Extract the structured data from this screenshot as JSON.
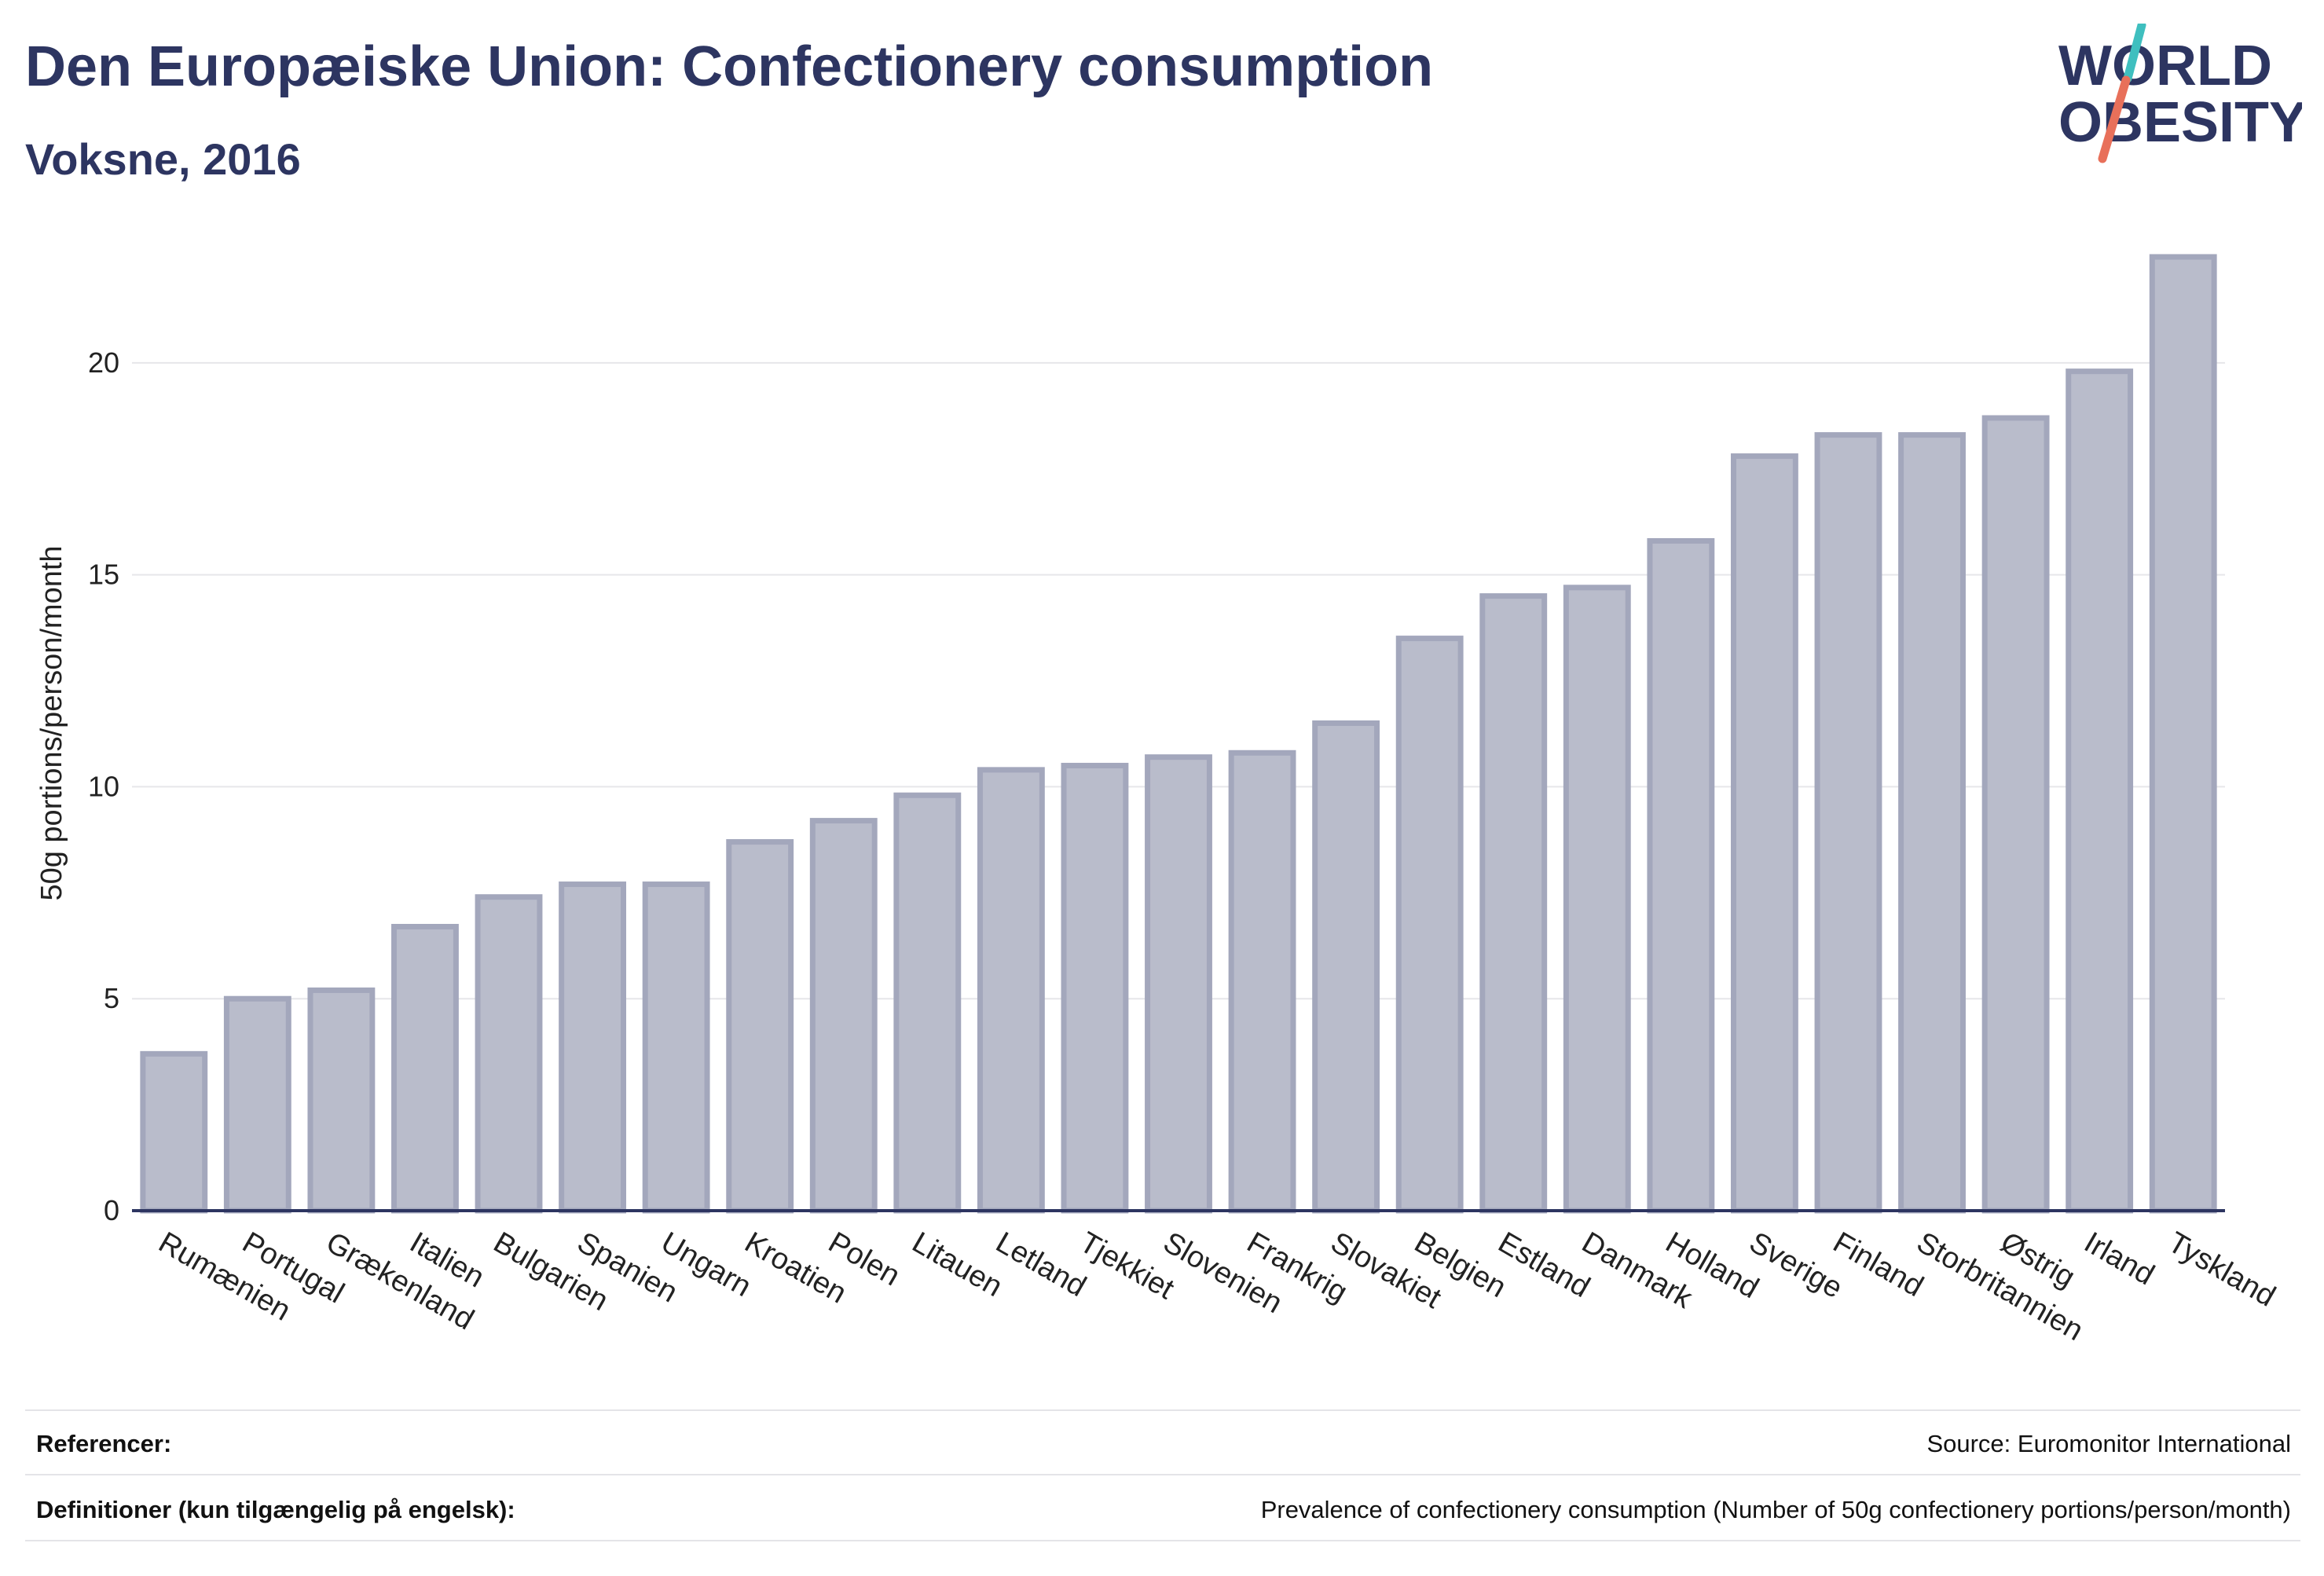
{
  "header": {
    "title": "Den Europæiske Union: Confectionery consumption",
    "subtitle": "Voksne, 2016"
  },
  "logo": {
    "line1": "WORLD",
    "line2": "OBESITY",
    "text_color": "#2d3561",
    "accent_teal": "#3fbfbf",
    "accent_coral": "#e8705a"
  },
  "chart_data": {
    "type": "bar",
    "ylabel": "50g portions/person/month",
    "xlabel": "",
    "ylim": [
      0,
      23
    ],
    "yticks": [
      0,
      5,
      10,
      15,
      20
    ],
    "grid": true,
    "bar_color": "#b9bccb",
    "bar_edge_color": "#a3a7bc",
    "categories": [
      "Rumænien",
      "Portugal",
      "Grækenland",
      "Italien",
      "Bulgarien",
      "Spanien",
      "Ungarn",
      "Kroatien",
      "Polen",
      "Litauen",
      "Letland",
      "Tjekkiet",
      "Slovenien",
      "Frankrig",
      "Slovakiet",
      "Belgien",
      "Estland",
      "Danmark",
      "Holland",
      "Sverige",
      "Finland",
      "Storbritannien",
      "Østrig",
      "Irland",
      "Tyskland"
    ],
    "values": [
      3.7,
      5.0,
      5.2,
      6.7,
      7.4,
      7.7,
      7.7,
      8.7,
      9.2,
      9.8,
      10.4,
      10.5,
      10.7,
      10.8,
      11.5,
      13.5,
      14.5,
      14.7,
      15.8,
      17.8,
      18.3,
      18.3,
      18.7,
      19.8,
      22.5
    ]
  },
  "footer": {
    "references_label": "Referencer:",
    "references_value": "Source: Euromonitor International",
    "definitions_label": "Definitioner (kun tilgængelig på engelsk):",
    "definitions_value": "Prevalence of confectionery consumption (Number of 50g confectionery portions/person/month)"
  }
}
